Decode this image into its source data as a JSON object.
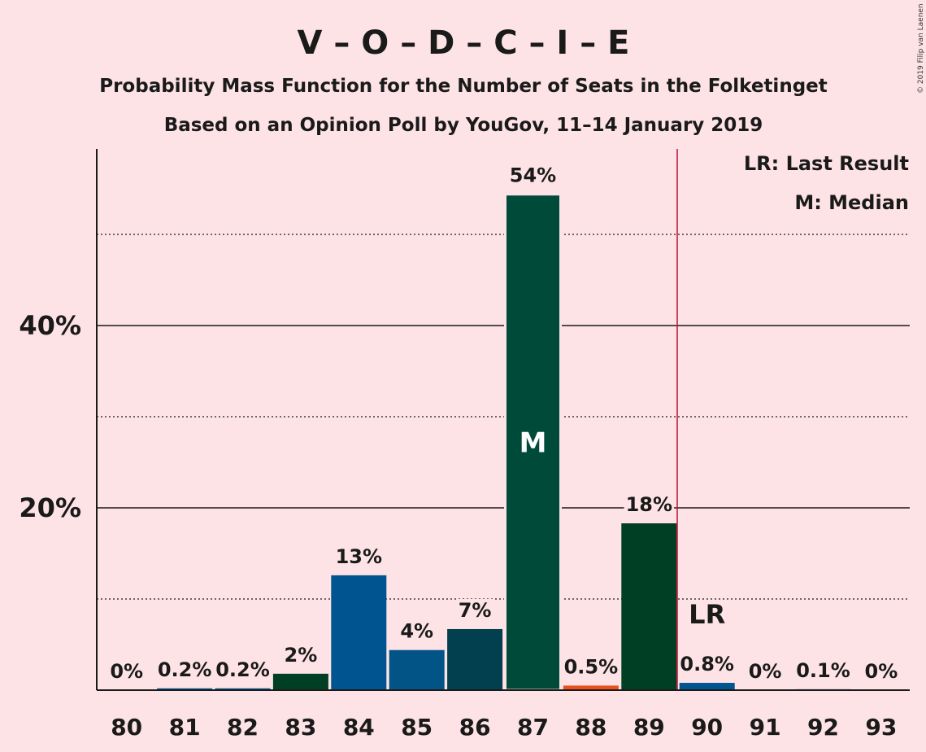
{
  "header": {
    "title": "V – O – D – C – I – E",
    "subtitle1": "Probability Mass Function for the Number of Seats in the Folketinget",
    "subtitle2": "Based on an Opinion Poll by YouGov, 11–14 January 2019",
    "copyright": "© 2019 Filip van Laenen"
  },
  "legend": {
    "lr": "LR: Last Result",
    "m": "M: Median"
  },
  "markers": {
    "median_label": "M",
    "last_result_label": "LR"
  },
  "colors": {
    "background": "#fde3e6",
    "bar_dark_green": "#004a3a",
    "bar_deep_green": "#013f25",
    "bar_blue": "#00548f",
    "bar_mid_blue": "#025487",
    "bar_teal": "#02404f",
    "bar_orange": "#e8501f",
    "last_result_line": "#c01030",
    "axis": "#1a1a1a"
  },
  "chart_data": {
    "type": "bar",
    "categories": [
      "80",
      "81",
      "82",
      "83",
      "84",
      "85",
      "86",
      "87",
      "88",
      "89",
      "90",
      "91",
      "92",
      "93"
    ],
    "values": [
      0,
      0.2,
      0.2,
      1.8,
      12.6,
      4.4,
      6.7,
      54.4,
      0.5,
      18.3,
      0.8,
      0,
      0.1,
      0
    ],
    "value_labels": [
      "0%",
      "0.2%",
      "0.2%",
      "2%",
      "13%",
      "4%",
      "7%",
      "54%",
      "0.5%",
      "18%",
      "0.8%",
      "0%",
      "0.1%",
      "0%"
    ],
    "bar_colors": [
      "#00548f",
      "#00548f",
      "#00548f",
      "#013f25",
      "#00548f",
      "#025487",
      "#02404f",
      "#004a3a",
      "#e8501f",
      "#013f25",
      "#00548f",
      "#00548f",
      "#00548f",
      "#00548f"
    ],
    "y_ticks": [
      20,
      40
    ],
    "y_tick_labels": [
      "20%",
      "40%"
    ],
    "dotted_gridlines": [
      10,
      30,
      50
    ],
    "ylim": [
      0,
      59
    ],
    "median_category": "87",
    "last_result_category": "90",
    "title": "V – O – D – C – I – E"
  }
}
